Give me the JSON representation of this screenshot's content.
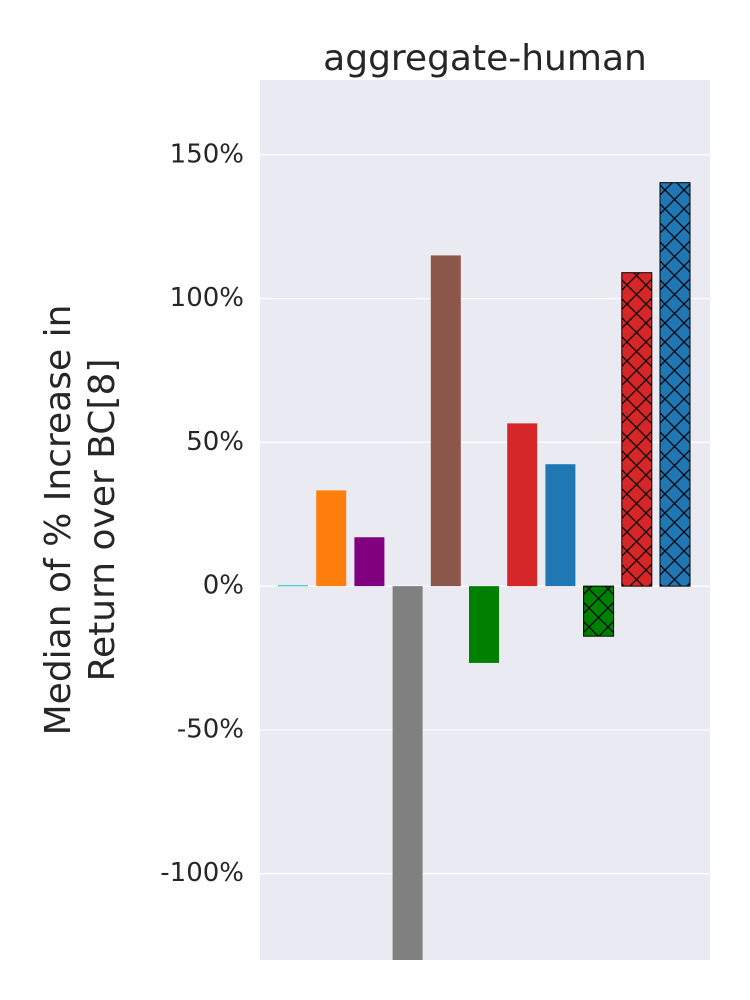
{
  "chart_data": {
    "type": "bar",
    "title": "aggregate-human",
    "ylabel": [
      "Median of % Increase in",
      "Return over BC[8]"
    ],
    "categories": [
      null,
      null,
      null,
      null,
      null,
      null,
      null,
      null,
      null,
      null,
      null
    ],
    "values": [
      0.3,
      33.3,
      17,
      -140,
      115,
      -26.7,
      56.6,
      42.4,
      -17.4,
      109,
      140.3
    ],
    "colors": [
      "#17becf",
      "#ff7f0e",
      "#800080",
      "#808080",
      "#8c564b",
      "#008000",
      "#d62728",
      "#1f77b4",
      "#008000",
      "#d62728",
      "#1f77b4"
    ],
    "hatched": [
      false,
      false,
      false,
      false,
      false,
      false,
      false,
      false,
      true,
      true,
      true
    ],
    "ylim": [
      -130,
      176
    ],
    "yticks": [
      {
        "value": -100,
        "label": "-100%"
      },
      {
        "value": -50,
        "label": "-50%"
      },
      {
        "value": 0,
        "label": "0%"
      },
      {
        "value": 50,
        "label": "50%"
      },
      {
        "value": 100,
        "label": "100%"
      },
      {
        "value": 150,
        "label": "150%"
      }
    ],
    "grid": true
  }
}
